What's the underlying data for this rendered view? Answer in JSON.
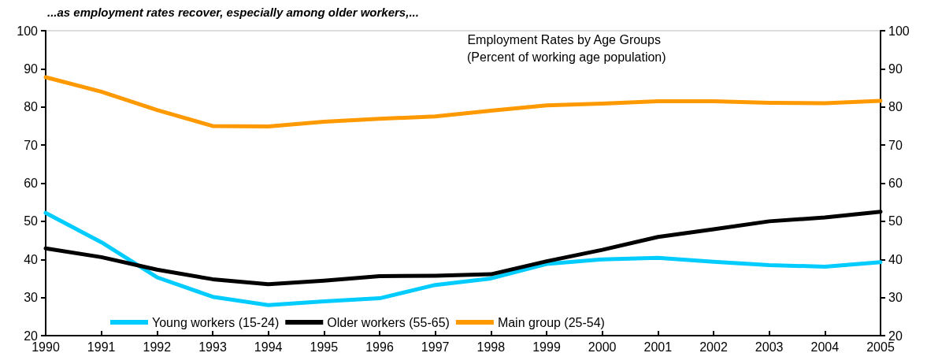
{
  "chart_data": {
    "type": "line",
    "title": "Employment Rates by Age Groups",
    "subtitle": "(Percent of working age population)",
    "annotations": [
      "...as employment rates recover, especially among older workers,..."
    ],
    "categories": [
      "1990",
      "1991",
      "1992",
      "1993",
      "1994",
      "1995",
      "1996",
      "1997",
      "1998",
      "1999",
      "2000",
      "2001",
      "2002",
      "2003",
      "2004",
      "2005"
    ],
    "series": [
      {
        "name": "Young workers (15-24)",
        "color": "#00ccff",
        "values": [
          52.2,
          44.5,
          35.3,
          30.2,
          28.0,
          29.0,
          29.8,
          33.3,
          35.0,
          38.8,
          40.0,
          40.4,
          39.4,
          38.5,
          38.1,
          39.3
        ]
      },
      {
        "name": "Older workers (55-65)",
        "color": "#000000",
        "values": [
          42.9,
          40.6,
          37.3,
          34.8,
          33.5,
          34.4,
          35.6,
          35.7,
          36.1,
          39.5,
          42.5,
          45.9,
          47.9,
          50.0,
          51.0,
          52.5
        ]
      },
      {
        "name": "Main group (25-54)",
        "color": "#ff9900",
        "values": [
          87.8,
          84.0,
          79.2,
          75.0,
          74.9,
          76.1,
          76.9,
          77.5,
          79.0,
          80.4,
          80.9,
          81.5,
          81.5,
          81.1,
          81.0,
          81.6
        ]
      }
    ],
    "ylim": [
      20,
      100
    ],
    "yticks": [
      20,
      30,
      40,
      50,
      60,
      70,
      80,
      90,
      100
    ],
    "y2lim": [
      20,
      100
    ],
    "y2ticks": [
      20,
      30,
      40,
      50,
      60,
      70,
      80,
      90,
      100
    ],
    "grid": false,
    "legend": "bottom",
    "marker": "none",
    "line_style": "solid"
  }
}
